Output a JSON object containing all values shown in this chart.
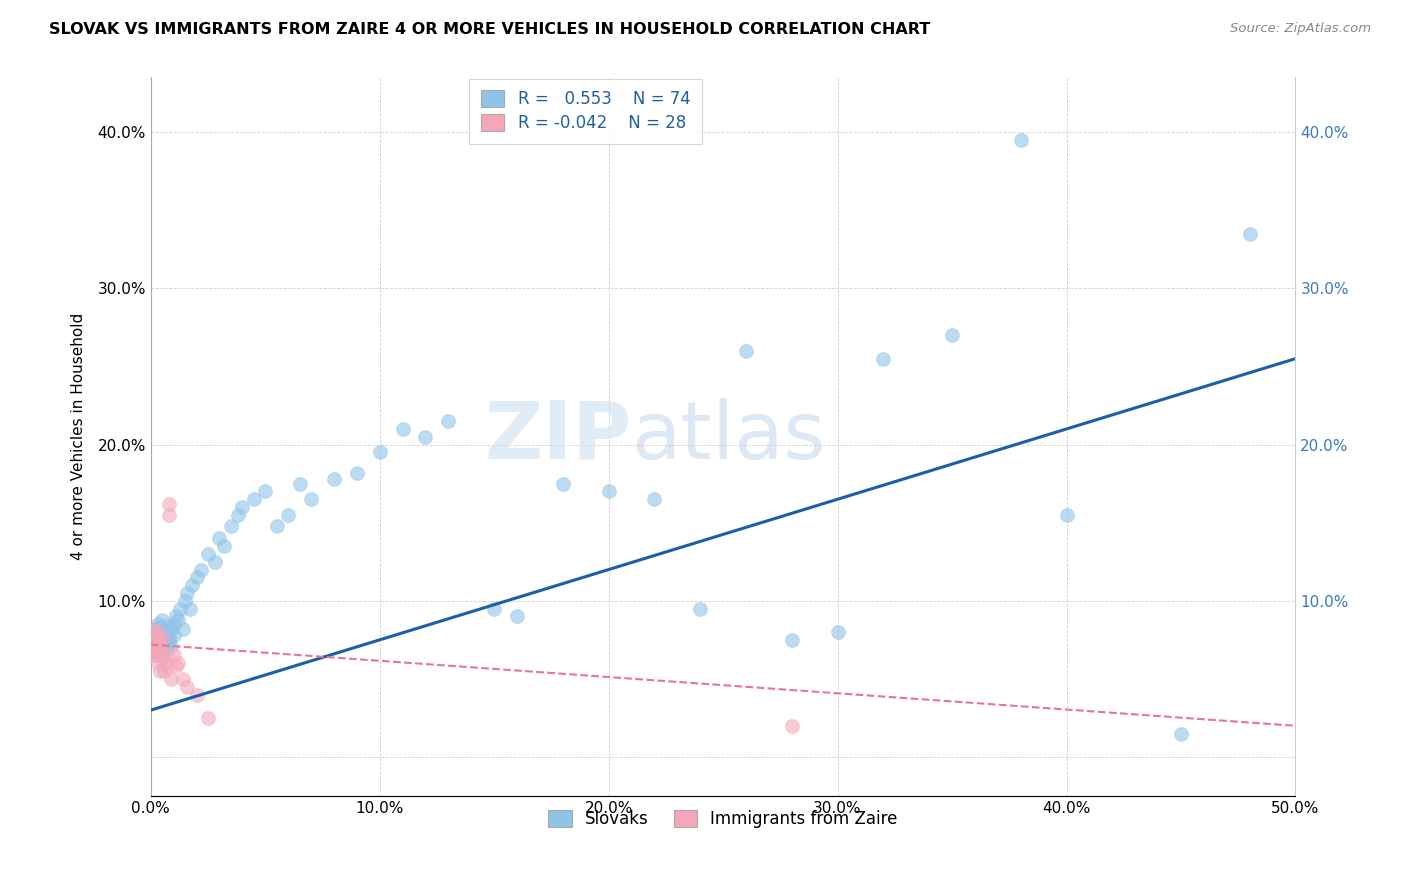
{
  "title": "SLOVAK VS IMMIGRANTS FROM ZAIRE 4 OR MORE VEHICLES IN HOUSEHOLD CORRELATION CHART",
  "source": "Source: ZipAtlas.com",
  "ylabel": "4 or more Vehicles in Household",
  "xlim": [
    0.0,
    0.5
  ],
  "ylim": [
    -0.025,
    0.435
  ],
  "x_ticks": [
    0.0,
    0.1,
    0.2,
    0.3,
    0.4,
    0.5
  ],
  "y_ticks": [
    0.0,
    0.1,
    0.2,
    0.3,
    0.4
  ],
  "x_tick_labels": [
    "0.0%",
    "10.0%",
    "20.0%",
    "30.0%",
    "40.0%",
    "50.0%"
  ],
  "y_tick_labels_left": [
    "",
    "10.0%",
    "20.0%",
    "30.0%",
    "40.0%"
  ],
  "y_tick_labels_right": [
    "",
    "10.0%",
    "20.0%",
    "30.0%",
    "40.0%"
  ],
  "legend_labels": [
    "Slovaks",
    "Immigrants from Zaire"
  ],
  "R_slovak": 0.553,
  "N_slovak": 74,
  "R_zaire": -0.042,
  "N_zaire": 28,
  "blue_color": "#8fc3e8",
  "pink_color": "#f4a7b9",
  "blue_line_color": "#1a5fa8",
  "pink_line_color": "#e8768a",
  "watermark_zip": "ZIP",
  "watermark_atlas": "atlas",
  "blue_line_x": [
    0.0,
    0.5
  ],
  "blue_line_y": [
    0.03,
    0.255
  ],
  "pink_line_x": [
    0.0,
    0.5
  ],
  "pink_line_y": [
    0.072,
    0.02
  ],
  "slovak_x": [
    0.001,
    0.001,
    0.001,
    0.001,
    0.002,
    0.002,
    0.002,
    0.002,
    0.003,
    0.003,
    0.003,
    0.003,
    0.004,
    0.004,
    0.004,
    0.005,
    0.005,
    0.005,
    0.006,
    0.006,
    0.006,
    0.007,
    0.007,
    0.007,
    0.008,
    0.008,
    0.009,
    0.009,
    0.01,
    0.01,
    0.011,
    0.012,
    0.013,
    0.014,
    0.015,
    0.016,
    0.017,
    0.018,
    0.02,
    0.022,
    0.025,
    0.028,
    0.03,
    0.032,
    0.035,
    0.038,
    0.04,
    0.045,
    0.05,
    0.055,
    0.06,
    0.065,
    0.07,
    0.08,
    0.09,
    0.1,
    0.11,
    0.12,
    0.13,
    0.15,
    0.16,
    0.18,
    0.2,
    0.22,
    0.24,
    0.26,
    0.28,
    0.3,
    0.32,
    0.35,
    0.38,
    0.4,
    0.45,
    0.48
  ],
  "slovak_y": [
    0.068,
    0.075,
    0.08,
    0.072,
    0.065,
    0.078,
    0.082,
    0.07,
    0.073,
    0.079,
    0.085,
    0.068,
    0.076,
    0.071,
    0.083,
    0.075,
    0.069,
    0.088,
    0.072,
    0.08,
    0.077,
    0.084,
    0.07,
    0.079,
    0.076,
    0.074,
    0.082,
    0.071,
    0.085,
    0.078,
    0.09,
    0.088,
    0.095,
    0.082,
    0.1,
    0.105,
    0.095,
    0.11,
    0.115,
    0.12,
    0.13,
    0.125,
    0.14,
    0.135,
    0.148,
    0.155,
    0.16,
    0.165,
    0.17,
    0.148,
    0.155,
    0.175,
    0.165,
    0.178,
    0.182,
    0.195,
    0.21,
    0.205,
    0.215,
    0.095,
    0.09,
    0.175,
    0.17,
    0.165,
    0.095,
    0.26,
    0.075,
    0.08,
    0.255,
    0.27,
    0.395,
    0.155,
    0.015,
    0.335
  ],
  "zaire_x": [
    0.001,
    0.001,
    0.001,
    0.002,
    0.002,
    0.002,
    0.003,
    0.003,
    0.003,
    0.004,
    0.004,
    0.005,
    0.005,
    0.006,
    0.006,
    0.007,
    0.007,
    0.008,
    0.008,
    0.009,
    0.01,
    0.011,
    0.012,
    0.014,
    0.016,
    0.02,
    0.025,
    0.28
  ],
  "zaire_y": [
    0.068,
    0.075,
    0.082,
    0.065,
    0.072,
    0.078,
    0.06,
    0.07,
    0.08,
    0.055,
    0.073,
    0.065,
    0.076,
    0.06,
    0.055,
    0.058,
    0.065,
    0.162,
    0.155,
    0.05,
    0.065,
    0.058,
    0.06,
    0.05,
    0.045,
    0.04,
    0.025,
    0.02
  ]
}
